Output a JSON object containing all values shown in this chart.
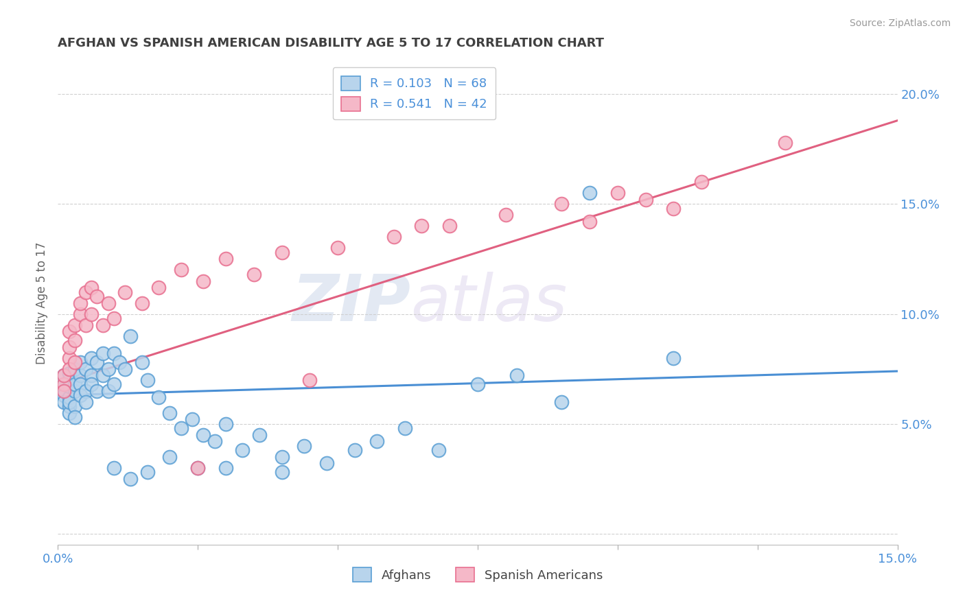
{
  "title": "AFGHAN VS SPANISH AMERICAN DISABILITY AGE 5 TO 17 CORRELATION CHART",
  "source": "Source: ZipAtlas.com",
  "ylabel": "Disability Age 5 to 17",
  "xlim": [
    0.0,
    0.15
  ],
  "ylim": [
    -0.005,
    0.215
  ],
  "xticks": [
    0.0,
    0.025,
    0.05,
    0.075,
    0.1,
    0.125,
    0.15
  ],
  "xtick_labels": [
    "0.0%",
    "",
    "",
    "",
    "",
    "",
    "15.0%"
  ],
  "yticks": [
    0.0,
    0.05,
    0.1,
    0.15,
    0.2
  ],
  "ytick_labels_right": [
    "",
    "5.0%",
    "10.0%",
    "15.0%",
    "20.0%"
  ],
  "afghan_color": "#b8d4ec",
  "spanish_color": "#f5b8c8",
  "afghan_edge_color": "#5a9fd4",
  "spanish_edge_color": "#e87090",
  "afghan_line_color": "#4a8fd4",
  "spanish_line_color": "#e06080",
  "afghan_R": 0.103,
  "afghan_N": 68,
  "spanish_R": 0.541,
  "spanish_N": 42,
  "watermark_zip": "ZIP",
  "watermark_atlas": "atlas",
  "background_color": "#ffffff",
  "grid_color": "#d0d0d0",
  "title_color": "#404040",
  "label_color": "#4a90d9",
  "tick_label_color": "#888888",
  "afghan_scatter_x": [
    0.001,
    0.001,
    0.001,
    0.001,
    0.001,
    0.002,
    0.002,
    0.002,
    0.002,
    0.002,
    0.002,
    0.002,
    0.003,
    0.003,
    0.003,
    0.003,
    0.003,
    0.004,
    0.004,
    0.004,
    0.004,
    0.005,
    0.005,
    0.005,
    0.006,
    0.006,
    0.006,
    0.007,
    0.007,
    0.008,
    0.008,
    0.009,
    0.009,
    0.01,
    0.01,
    0.011,
    0.012,
    0.013,
    0.015,
    0.016,
    0.018,
    0.02,
    0.022,
    0.024,
    0.026,
    0.028,
    0.03,
    0.033,
    0.036,
    0.04,
    0.044,
    0.048,
    0.053,
    0.057,
    0.062,
    0.068,
    0.075,
    0.082,
    0.09,
    0.095,
    0.01,
    0.013,
    0.016,
    0.02,
    0.025,
    0.03,
    0.04,
    0.11
  ],
  "afghan_scatter_y": [
    0.065,
    0.068,
    0.063,
    0.06,
    0.072,
    0.058,
    0.062,
    0.067,
    0.055,
    0.07,
    0.073,
    0.06,
    0.075,
    0.065,
    0.068,
    0.058,
    0.053,
    0.072,
    0.068,
    0.063,
    0.078,
    0.075,
    0.065,
    0.06,
    0.08,
    0.072,
    0.068,
    0.078,
    0.065,
    0.082,
    0.072,
    0.075,
    0.065,
    0.082,
    0.068,
    0.078,
    0.075,
    0.09,
    0.078,
    0.07,
    0.062,
    0.055,
    0.048,
    0.052,
    0.045,
    0.042,
    0.05,
    0.038,
    0.045,
    0.035,
    0.04,
    0.032,
    0.038,
    0.042,
    0.048,
    0.038,
    0.068,
    0.072,
    0.06,
    0.155,
    0.03,
    0.025,
    0.028,
    0.035,
    0.03,
    0.03,
    0.028,
    0.08
  ],
  "spanish_scatter_x": [
    0.001,
    0.001,
    0.001,
    0.002,
    0.002,
    0.002,
    0.002,
    0.003,
    0.003,
    0.003,
    0.004,
    0.004,
    0.005,
    0.005,
    0.006,
    0.006,
    0.007,
    0.008,
    0.009,
    0.01,
    0.012,
    0.015,
    0.018,
    0.022,
    0.026,
    0.03,
    0.035,
    0.04,
    0.05,
    0.06,
    0.07,
    0.08,
    0.09,
    0.095,
    0.1,
    0.105,
    0.11,
    0.115,
    0.025,
    0.045,
    0.065,
    0.13
  ],
  "spanish_scatter_y": [
    0.068,
    0.072,
    0.065,
    0.08,
    0.075,
    0.085,
    0.092,
    0.088,
    0.095,
    0.078,
    0.1,
    0.105,
    0.095,
    0.11,
    0.112,
    0.1,
    0.108,
    0.095,
    0.105,
    0.098,
    0.11,
    0.105,
    0.112,
    0.12,
    0.115,
    0.125,
    0.118,
    0.128,
    0.13,
    0.135,
    0.14,
    0.145,
    0.15,
    0.142,
    0.155,
    0.152,
    0.148,
    0.16,
    0.03,
    0.07,
    0.14,
    0.178
  ]
}
